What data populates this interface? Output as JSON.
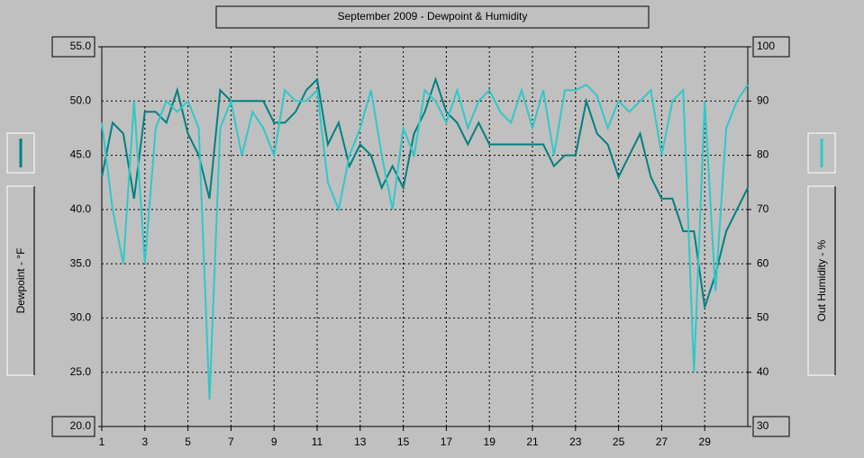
{
  "chart_data": {
    "type": "line",
    "title": "September 2009 - Dewpoint & Humidity",
    "ylabel": "Dewpoint - °F",
    "y2label": "Out Humidity - %",
    "x": [
      1,
      1.5,
      2,
      2.5,
      3,
      3.5,
      4,
      4.5,
      5,
      5.5,
      6,
      6.5,
      7,
      7.5,
      8,
      8.5,
      9,
      9.5,
      10,
      10.5,
      11,
      11.5,
      12,
      12.5,
      13,
      13.5,
      14,
      14.5,
      15,
      15.5,
      16,
      16.5,
      17,
      17.5,
      18,
      18.5,
      19,
      19.5,
      20,
      20.5,
      21,
      21.5,
      22,
      22.5,
      23,
      23.5,
      24,
      24.5,
      25,
      25.5,
      26,
      26.5,
      27,
      27.5,
      28,
      28.5,
      29,
      29.5,
      30,
      30.5,
      31
    ],
    "series": [
      {
        "name": "Dewpoint",
        "color": "#008080",
        "axis": "y",
        "values": [
          43,
          48,
          47,
          41,
          49,
          49,
          48,
          51,
          47,
          45,
          41,
          51,
          50,
          50,
          50,
          50,
          48,
          48,
          49,
          51,
          52,
          46,
          48,
          44,
          46,
          45,
          42,
          44,
          42,
          47,
          49,
          52,
          49,
          48,
          46,
          48,
          46,
          46,
          46,
          46,
          46,
          46,
          44,
          45,
          45,
          50,
          47,
          46,
          43,
          45,
          47,
          43,
          41,
          41,
          38,
          38,
          31,
          34,
          38,
          40,
          42
        ]
      },
      {
        "name": "Out Humidity",
        "color": "#30c8c8",
        "axis": "y2",
        "values": [
          86,
          70,
          60,
          90,
          60,
          85,
          90,
          88,
          90,
          85,
          35,
          85,
          90,
          80,
          88,
          85,
          80,
          92,
          90,
          90,
          92,
          75,
          70,
          80,
          85,
          92,
          80,
          70,
          85,
          80,
          92,
          90,
          86,
          92,
          85,
          90,
          92,
          88,
          86,
          92,
          85,
          92,
          80,
          92,
          92,
          93,
          91,
          85,
          90,
          88,
          90,
          92,
          80,
          90,
          92,
          40,
          90,
          55,
          85,
          90,
          93
        ]
      }
    ],
    "xlim": [
      1,
      31
    ],
    "xticks": [
      1,
      3,
      5,
      7,
      9,
      11,
      13,
      15,
      17,
      19,
      21,
      23,
      25,
      27,
      29
    ],
    "ylim": [
      20,
      55
    ],
    "yticks": [
      {
        "value": 20,
        "label": "20.0"
      },
      {
        "value": 25,
        "label": "25.0"
      },
      {
        "value": 30,
        "label": "30.0"
      },
      {
        "value": 35,
        "label": "35.0"
      },
      {
        "value": 40,
        "label": "40.0"
      },
      {
        "value": 45,
        "label": "45.0"
      },
      {
        "value": 50,
        "label": "50.0"
      },
      {
        "value": 55,
        "label": "55.0"
      }
    ],
    "y2lim": [
      30,
      100
    ],
    "y2ticks": [
      30,
      40,
      50,
      60,
      70,
      80,
      90,
      100
    ],
    "grid": true
  }
}
